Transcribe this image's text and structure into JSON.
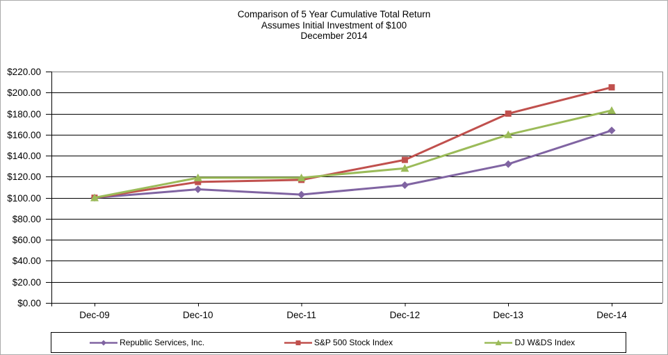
{
  "title": {
    "line1": "Comparison of 5 Year Cumulative Total Return",
    "line2": "Assumes Initial Investment of $100",
    "line3": "December 2014"
  },
  "chart_data": {
    "type": "line",
    "categories": [
      "Dec-09",
      "Dec-10",
      "Dec-11",
      "Dec-12",
      "Dec-13",
      "Dec-14"
    ],
    "series": [
      {
        "name": "Republic Services, Inc.",
        "marker": "diamond",
        "color": "#8064A2",
        "values": [
          100.0,
          108.0,
          103.0,
          112.0,
          132.0,
          164.0
        ]
      },
      {
        "name": "S&P 500 Stock Index",
        "marker": "square",
        "color": "#C0504D",
        "values": [
          100.0,
          115.0,
          117.0,
          136.0,
          180.0,
          205.0
        ]
      },
      {
        "name": "DJ W&DS Index",
        "marker": "triangle",
        "color": "#9BBB59",
        "values": [
          100.0,
          119.0,
          119.0,
          128.0,
          160.0,
          183.0
        ]
      }
    ],
    "ylim": [
      0,
      220
    ],
    "y_tick_step": 20,
    "y_ticks": [
      "$220.00",
      "$200.00",
      "$180.00",
      "$160.00",
      "$140.00",
      "$120.00",
      "$100.00",
      "$80.00",
      "$60.00",
      "$40.00",
      "$20.00",
      "$0.00"
    ],
    "grid": true,
    "legend_position": "bottom",
    "axis_color": "#000000",
    "border_color": "#808080"
  }
}
